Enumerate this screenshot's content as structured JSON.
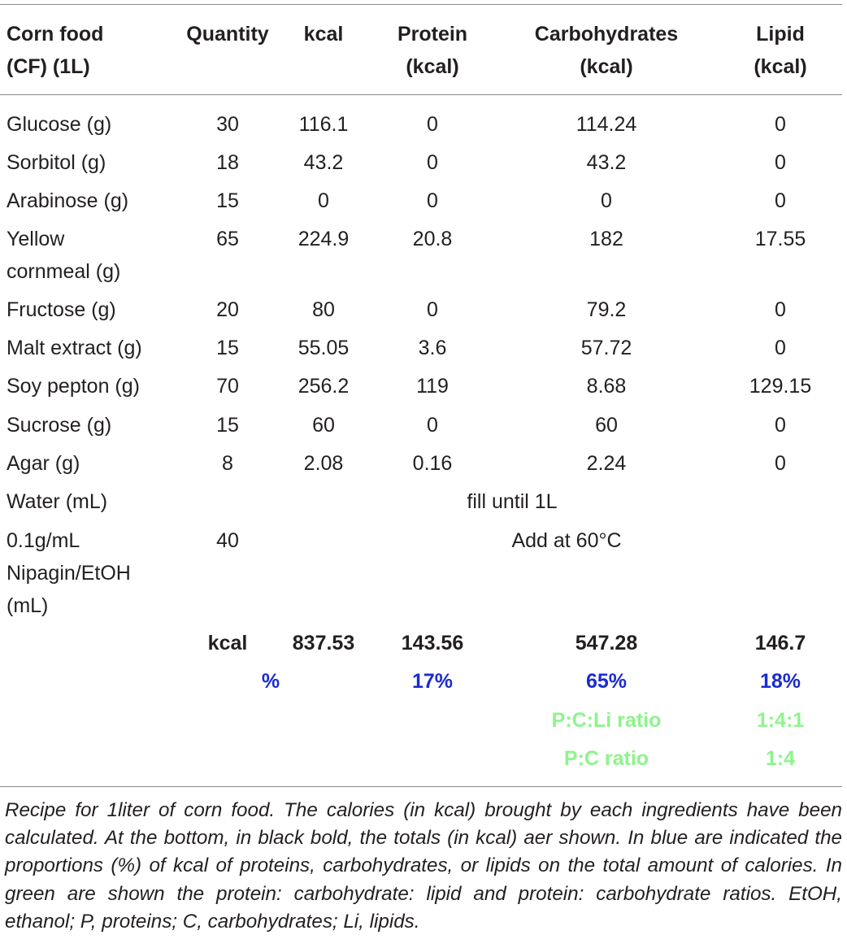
{
  "headers": {
    "food": [
      "Corn food",
      "(CF) (1L)"
    ],
    "quantity": [
      "Quantity"
    ],
    "kcal": [
      "kcal"
    ],
    "protein": [
      "Protein",
      "(kcal)"
    ],
    "carbohydrates": [
      "Carbohydrates",
      "(kcal)"
    ],
    "lipid": [
      "Lipid",
      "(kcal)"
    ]
  },
  "rows": [
    {
      "name": [
        "Glucose (g)"
      ],
      "quantity": "30",
      "kcal": "116.1",
      "protein": "0",
      "carbohydrates": "114.24",
      "lipid": "0"
    },
    {
      "name": [
        "Sorbitol (g)"
      ],
      "quantity": "18",
      "kcal": "43.2",
      "protein": "0",
      "carbohydrates": "43.2",
      "lipid": "0"
    },
    {
      "name": [
        "Arabinose (g)"
      ],
      "quantity": "15",
      "kcal": "0",
      "protein": "0",
      "carbohydrates": "0",
      "lipid": "0"
    },
    {
      "name": [
        "Yellow",
        "cornmeal (g)"
      ],
      "quantity": "65",
      "kcal": "224.9",
      "protein": "20.8",
      "carbohydrates": "182",
      "lipid": "17.55"
    },
    {
      "name": [
        "Fructose (g)"
      ],
      "quantity": "20",
      "kcal": "80",
      "protein": "0",
      "carbohydrates": "79.2",
      "lipid": "0"
    },
    {
      "name": [
        "Malt extract (g)"
      ],
      "quantity": "15",
      "kcal": "55.05",
      "protein": "3.6",
      "carbohydrates": "57.72",
      "lipid": "0"
    },
    {
      "name": [
        "Soy pepton (g)"
      ],
      "quantity": "70",
      "kcal": "256.2",
      "protein": "119",
      "carbohydrates": "8.68",
      "lipid": "129.15"
    },
    {
      "name": [
        "Sucrose (g)"
      ],
      "quantity": "15",
      "kcal": "60",
      "protein": "0",
      "carbohydrates": "60",
      "lipid": "0"
    },
    {
      "name": [
        "Agar (g)"
      ],
      "quantity": "8",
      "kcal": "2.08",
      "protein": "0.16",
      "carbohydrates": "2.24",
      "lipid": "0"
    }
  ],
  "water_row": {
    "name": "Water (mL)",
    "note": "fill until 1L"
  },
  "nipagin_row": {
    "name": [
      "0.1g/mL",
      "Nipagin/EtOH",
      "(mL)"
    ],
    "quantity": "40",
    "note": "Add at 60°C"
  },
  "totals": {
    "label": "kcal",
    "kcal": "837.53",
    "protein": "143.56",
    "carbohydrates": "547.28",
    "lipid": "146.7"
  },
  "percent": {
    "label": "%",
    "protein": "17%",
    "carbohydrates": "65%",
    "lipid": "18%"
  },
  "ratios": [
    {
      "label": "P:C:Li ratio",
      "value": "1:4:1"
    },
    {
      "label": "P:C ratio",
      "value": "1:4"
    }
  ],
  "caption": "Recipe for 1liter of corn food. The calories (in kcal) brought by each ingredients have been calculated. At the bottom, in black bold, the totals (in kcal) aer shown. In blue are indicated the proportions (%) of kcal of proteins, carbohydrates, or lipids on the total amount of calories. In green are shown the protein: carbohydrate: lipid and protein: carbohydrate ratios. EtOH, ethanol; P, proteins; C, carbohydrates; Li, lipids.",
  "colors": {
    "text": "#231f20",
    "percent": "#1b2bd0",
    "ratio": "#8cf58a",
    "rule": "#8a8a8a"
  }
}
